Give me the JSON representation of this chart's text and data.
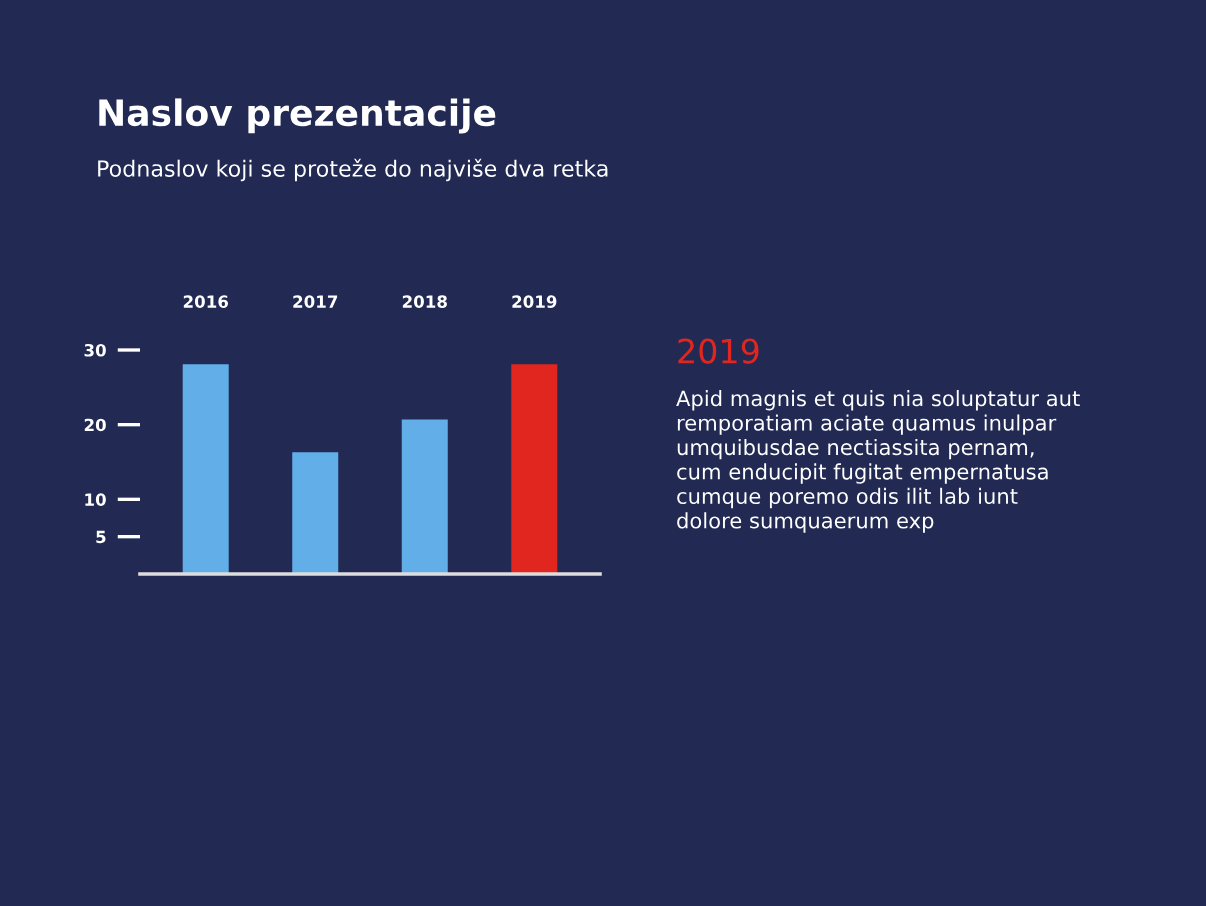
{
  "chart_data": {
    "type": "bar",
    "title": "Naslov prezentacije",
    "subtitle": "Podnaslov koji se proteže do najviše dva retka",
    "categories": [
      "2016",
      "2017",
      "2018",
      "2019"
    ],
    "values": [
      28.1,
      16.3,
      20.7,
      28.1
    ],
    "colors": [
      "#62aee8",
      "#62aee8",
      "#62aee8",
      "#e0261e"
    ],
    "ylim": [
      0,
      30
    ],
    "yticks": [
      5,
      10,
      20,
      30
    ],
    "grid": false,
    "annotations": [
      "2019",
      "Apid magnis et quis nia soluptatur aut\nremporatiam aciate quamus inulpar\numquibusdae nectiassita pernam,\ncum enducipit fugitat empernatusa\ncumque poremo odis ilit lab iunt\ndolore sumquaerum exp"
    ]
  }
}
